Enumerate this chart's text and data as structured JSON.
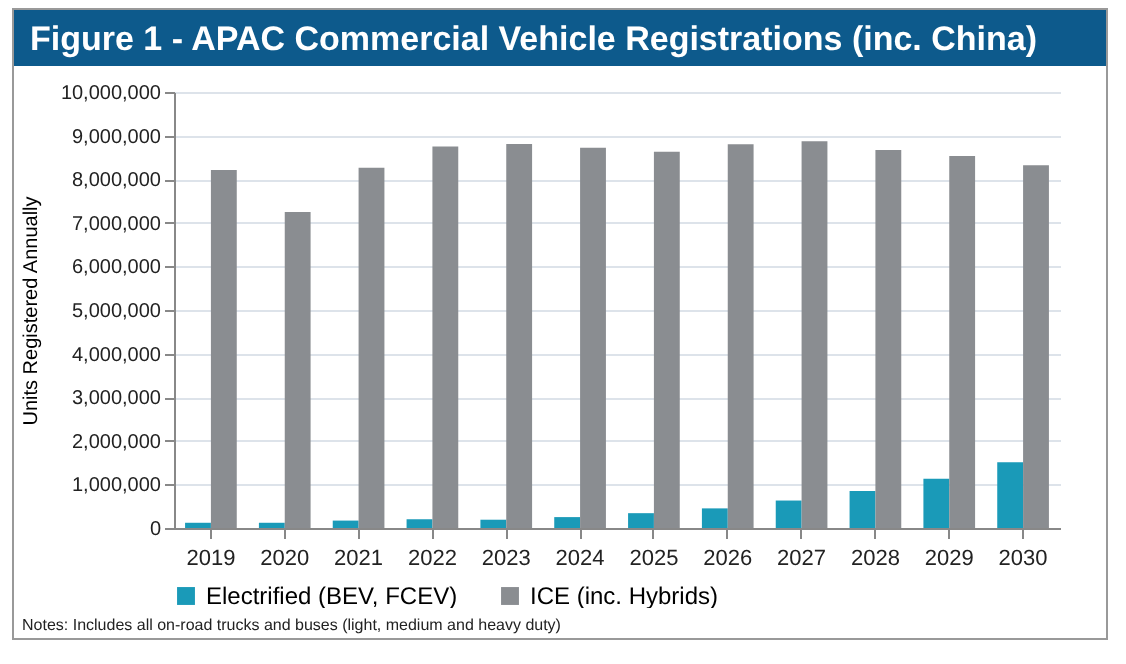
{
  "chart_data": {
    "type": "bar",
    "title": "Figure 1 - APAC Commercial Vehicle Registrations (inc. China)",
    "ylabel": "Units Registered Annually",
    "categories": [
      "2019",
      "2020",
      "2021",
      "2022",
      "2023",
      "2024",
      "2025",
      "2026",
      "2027",
      "2028",
      "2029",
      "2030"
    ],
    "series": [
      {
        "name": "Electrified (BEV, FCEV)",
        "color": "#1a9ab8",
        "values": [
          120000,
          120000,
          170000,
          200000,
          190000,
          250000,
          340000,
          450000,
          630000,
          850000,
          1130000,
          1510000
        ]
      },
      {
        "name": "ICE (inc. Hybrids)",
        "color": "#8a8d91",
        "values": [
          8210000,
          7250000,
          8260000,
          8750000,
          8810000,
          8720000,
          8630000,
          8800000,
          8870000,
          8670000,
          8530000,
          8320000
        ]
      }
    ],
    "ylim": [
      0,
      10000000
    ],
    "yticks": [
      0,
      {
        "value": 1000000,
        "label": "1,000,000"
      },
      {
        "value": 2000000,
        "label": "2,000,000"
      },
      {
        "value": 3000000,
        "label": "3,000,000"
      },
      {
        "value": 4000000,
        "label": "4,000,000"
      },
      {
        "value": 5000000,
        "label": "5,000,000"
      },
      {
        "value": 6000000,
        "label": "6,000,000"
      },
      {
        "value": 7000000,
        "label": "7,000,000"
      },
      {
        "value": 8000000,
        "label": "8,000,000"
      },
      {
        "value": 9000000,
        "label": "9,000,000"
      },
      {
        "value": 10000000,
        "label": "10,000,000"
      }
    ],
    "grid": "y",
    "legend": "bottom",
    "annotations": [
      "Notes: Includes all on-road trucks and buses (light, medium and heavy duty)"
    ]
  }
}
